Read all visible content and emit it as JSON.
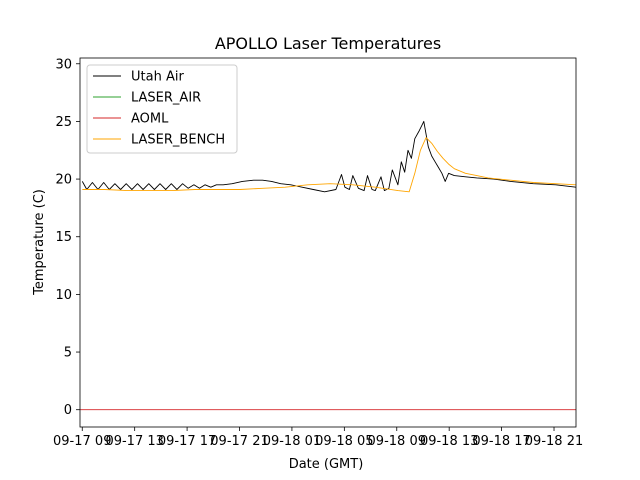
{
  "chart_data": {
    "type": "line",
    "title": "APOLLO Laser Temperatures",
    "xlabel": "Date (GMT)",
    "ylabel": "Temperature (C)",
    "xlim_hours": [
      -0.2,
      43.8
    ],
    "ylim": [
      -1.5,
      30.5
    ],
    "x_tick_hours": [
      0,
      4.65,
      9.3,
      13.95,
      18.6,
      23.25,
      27.9,
      32.55,
      37.2,
      41.85
    ],
    "x_tick_labels": [
      "09-17 09",
      "09-17 13",
      "09-17 17",
      "09-17 21",
      "09-18 01",
      "09-18 05",
      "09-18 09",
      "09-18 13",
      "09-18 17",
      "09-18 21"
    ],
    "y_ticks": [
      0,
      5,
      10,
      15,
      20,
      25,
      30
    ],
    "y_tick_labels": [
      "0",
      "5",
      "10",
      "15",
      "20",
      "25",
      "30"
    ],
    "legend_position": "top-left",
    "series": [
      {
        "name": "Utah Air",
        "color": "#000000",
        "x": [
          0,
          0.4,
          0.9,
          1.4,
          1.9,
          2.4,
          2.9,
          3.4,
          3.9,
          4.4,
          4.9,
          5.4,
          5.9,
          6.4,
          6.9,
          7.4,
          7.9,
          8.4,
          8.9,
          9.4,
          9.9,
          10.4,
          10.9,
          11.4,
          11.9,
          12.5,
          13.3,
          14.2,
          15.2,
          16.0,
          16.8,
          17.6,
          18.5,
          19.5,
          20.5,
          21.5,
          22.5,
          23.0,
          23.3,
          23.7,
          24.0,
          24.5,
          25.0,
          25.3,
          25.7,
          26.0,
          26.5,
          26.8,
          27.2,
          27.5,
          28.0,
          28.3,
          28.6,
          28.9,
          29.2,
          29.5,
          29.9,
          30.3,
          30.7,
          31.0,
          31.3,
          31.6,
          31.9,
          32.2,
          32.5,
          33.0,
          34.0,
          35.0,
          36.5,
          38.0,
          40.0,
          42.0,
          43.8
        ],
        "y": [
          19.8,
          19.1,
          19.7,
          19.1,
          19.7,
          19.1,
          19.6,
          19.1,
          19.6,
          19.1,
          19.6,
          19.1,
          19.6,
          19.1,
          19.6,
          19.1,
          19.6,
          19.1,
          19.6,
          19.2,
          19.5,
          19.2,
          19.5,
          19.3,
          19.5,
          19.5,
          19.6,
          19.8,
          19.9,
          19.9,
          19.8,
          19.6,
          19.5,
          19.3,
          19.1,
          18.9,
          19.1,
          20.4,
          19.3,
          19.1,
          20.3,
          19.2,
          19.0,
          20.3,
          19.1,
          19.0,
          20.2,
          19.0,
          19.2,
          20.8,
          19.5,
          21.5,
          20.6,
          22.5,
          21.8,
          23.5,
          24.2,
          25.0,
          22.8,
          22.0,
          21.5,
          21.0,
          20.5,
          19.8,
          20.5,
          20.3,
          20.2,
          20.1,
          20.0,
          19.8,
          19.6,
          19.5,
          19.3
        ]
      },
      {
        "name": "LASER_AIR",
        "color": "#2ca02c",
        "x": [],
        "y": []
      },
      {
        "name": "AOML",
        "color": "#d62728",
        "x": [
          -0.2,
          43.8
        ],
        "y": [
          0,
          0
        ]
      },
      {
        "name": "LASER_BENCH",
        "color": "#ffa500",
        "x": [
          0,
          2,
          4,
          6,
          8,
          10,
          12,
          14,
          16,
          18,
          20,
          22,
          24,
          26,
          28,
          29,
          29.5,
          30,
          30.5,
          31,
          31.5,
          32,
          32.5,
          33,
          34,
          35,
          36,
          38,
          40,
          42,
          43.8
        ],
        "y": [
          19.1,
          19.1,
          19.0,
          19.0,
          19.0,
          19.1,
          19.1,
          19.1,
          19.2,
          19.3,
          19.5,
          19.6,
          19.5,
          19.3,
          19.0,
          18.9,
          20.5,
          22.5,
          23.6,
          23.1,
          22.4,
          21.8,
          21.3,
          20.9,
          20.5,
          20.3,
          20.1,
          19.9,
          19.7,
          19.6,
          19.5
        ]
      }
    ]
  }
}
